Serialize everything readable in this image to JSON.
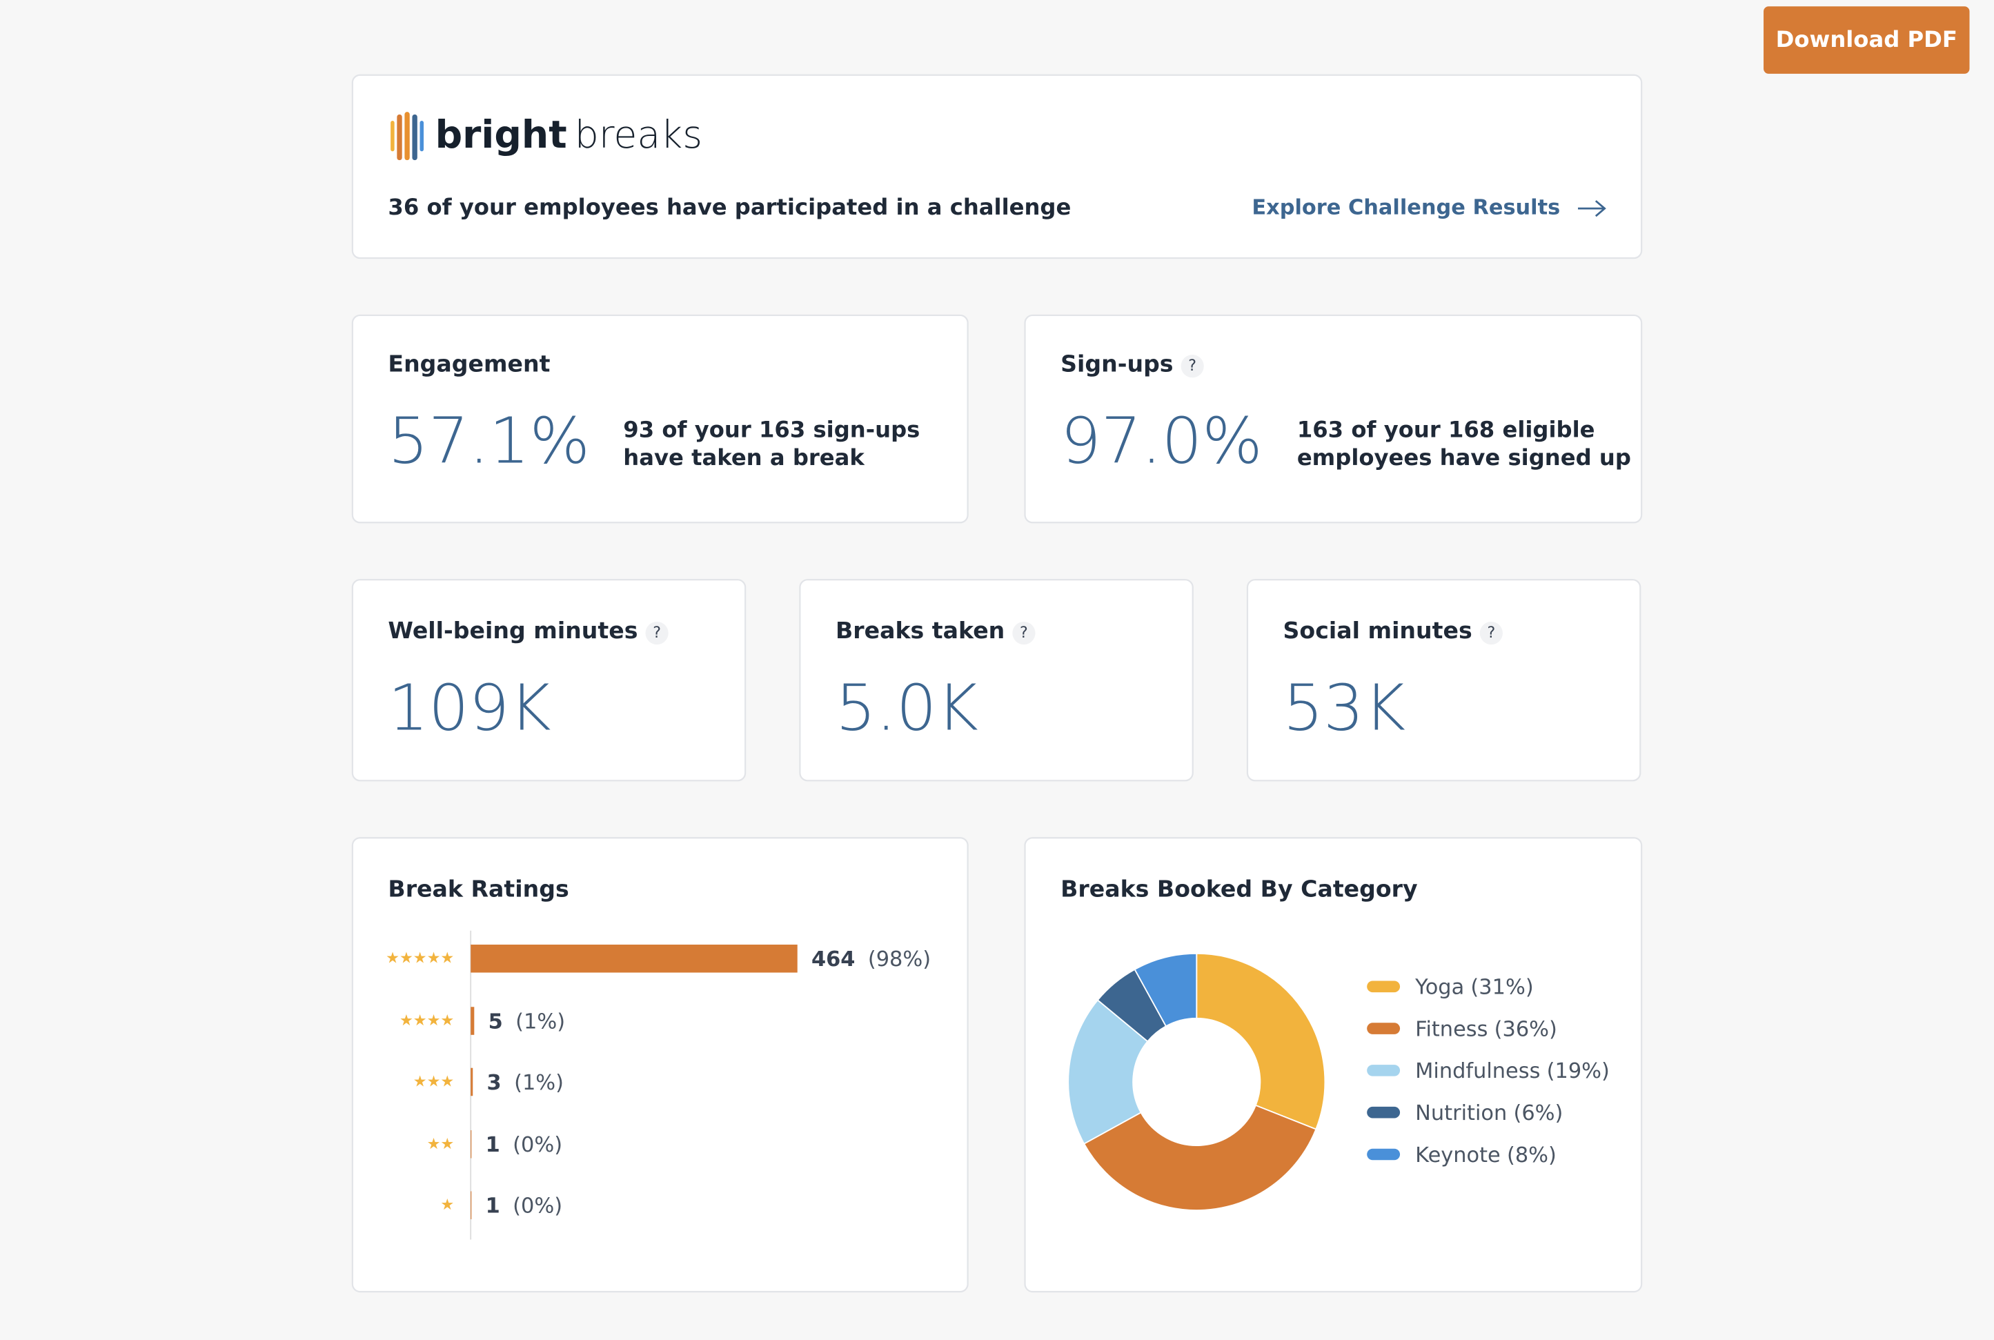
{
  "header": {
    "button": "Download PDF",
    "brand_bold": "bright",
    "brand_light": "breaks",
    "challenge_text": "36 of your employees have participated in a challenge",
    "link": "Explore Challenge Results"
  },
  "help_icon": "?",
  "stats": [
    {
      "title": "Engagement",
      "value": "57.1%",
      "description": [
        "93 of your 163 sign-ups",
        "have taken a break"
      ],
      "help": false
    },
    {
      "title": "Sign-ups",
      "value": "97.0%",
      "description": [
        "163 of your 168 eligible",
        "employees have signed up"
      ],
      "help": true
    },
    {
      "title": "Well-being minutes",
      "value": "109K",
      "help": true
    },
    {
      "title": "Breaks taken",
      "value": "5.0K",
      "help": true
    },
    {
      "title": "Social minutes",
      "value": "53K",
      "help": true
    }
  ],
  "chart_data": [
    {
      "type": "bar",
      "title": "Break Ratings",
      "categories": [
        "★★★★★",
        "★★★★",
        "★★★",
        "★★",
        "★"
      ],
      "values": [
        464,
        5,
        3,
        1,
        1
      ],
      "share_labels": [
        "(98%)",
        "(1%)",
        "(1%)",
        "(0%)",
        "(0%)"
      ],
      "color": "#d67b35",
      "category_color": "#f2b33d"
    },
    {
      "type": "pie",
      "title": "Breaks Booked By Category",
      "categories": [
        "Yoga",
        "Fitness",
        "Mindfulness",
        "Nutrition",
        "Keynote"
      ],
      "values": [
        31,
        36,
        19,
        6,
        8
      ],
      "value_labels": [
        "(31%)",
        "(36%)",
        "(19%)",
        "(6%)",
        "(8%)"
      ],
      "colors": [
        "#f2b33d",
        "#d67b35",
        "#a5d4ee",
        "#3d6690",
        "#4a90d9"
      ]
    }
  ]
}
